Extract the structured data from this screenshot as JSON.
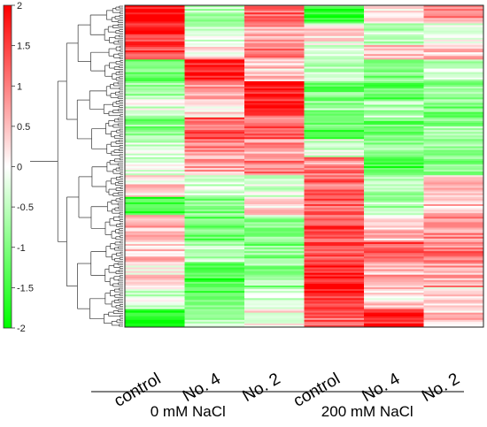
{
  "chart_data": {
    "type": "heatmap",
    "title": "",
    "columns": [
      "control",
      "No. 4",
      "No. 2",
      "control",
      "No. 4",
      "No. 2"
    ],
    "groups": [
      {
        "label": "0 mM NaCl",
        "columns": [
          0,
          1,
          2
        ]
      },
      {
        "label": "200 mM NaCl",
        "columns": [
          3,
          4,
          5
        ]
      }
    ],
    "color_scale": {
      "min": -2,
      "max": 2,
      "ticks": [
        2,
        1.5,
        1,
        0.5,
        0,
        -0.5,
        -1,
        -1.5,
        -2
      ],
      "tick_labels": [
        "2",
        "1.5",
        "1",
        "0.5",
        "0",
        "-0.5",
        "-1",
        "-1.5",
        "-2"
      ],
      "low_color": "#00ff00",
      "mid_color": "#ffffff",
      "high_color": "#ff0000"
    },
    "row_clusters": [
      {
        "rows": 10,
        "values": [
          1.9,
          -0.6,
          1.2,
          -1.7,
          0.2,
          0.9
        ]
      },
      {
        "rows": 12,
        "values": [
          1.7,
          -0.4,
          0.8,
          0.2,
          -0.6,
          -0.3
        ]
      },
      {
        "rows": 8,
        "values": [
          1.5,
          0.3,
          0.9,
          -0.3,
          0.6,
          0.4
        ]
      },
      {
        "rows": 12,
        "values": [
          -1.2,
          1.9,
          0.4,
          -0.7,
          -0.9,
          -0.5
        ]
      },
      {
        "rows": 10,
        "values": [
          -0.8,
          0.7,
          1.9,
          -1.1,
          -1.2,
          -0.8
        ]
      },
      {
        "rows": 10,
        "values": [
          -0.3,
          0.2,
          1.5,
          -0.8,
          -0.5,
          -1.0
        ]
      },
      {
        "rows": 12,
        "values": [
          -0.9,
          1.3,
          1.2,
          -1.3,
          -1.1,
          -0.8
        ]
      },
      {
        "rows": 10,
        "values": [
          -0.4,
          0.9,
          0.8,
          -0.2,
          -0.9,
          -0.6
        ]
      },
      {
        "rows": 10,
        "values": [
          -0.2,
          0.7,
          1.0,
          0.9,
          -1.5,
          -1.0
        ]
      },
      {
        "rows": 12,
        "values": [
          0.3,
          -0.2,
          -0.4,
          1.1,
          -0.8,
          0.3
        ]
      },
      {
        "rows": 10,
        "values": [
          -1.6,
          -0.9,
          0.2,
          1.3,
          -0.6,
          0.4
        ]
      },
      {
        "rows": 14,
        "values": [
          0.6,
          -1.1,
          -0.7,
          1.4,
          0.5,
          0.9
        ]
      },
      {
        "rows": 12,
        "values": [
          0.4,
          -0.6,
          -1.0,
          1.5,
          1.4,
          1.1
        ]
      },
      {
        "rows": 14,
        "values": [
          0.2,
          -1.5,
          -0.8,
          1.8,
          0.6,
          0.7
        ]
      },
      {
        "rows": 12,
        "values": [
          -0.3,
          -1.2,
          -0.2,
          1.7,
          0.3,
          0.2
        ]
      },
      {
        "rows": 10,
        "values": [
          -1.9,
          -0.7,
          0.1,
          1.2,
          1.8,
          0.5
        ]
      }
    ]
  }
}
